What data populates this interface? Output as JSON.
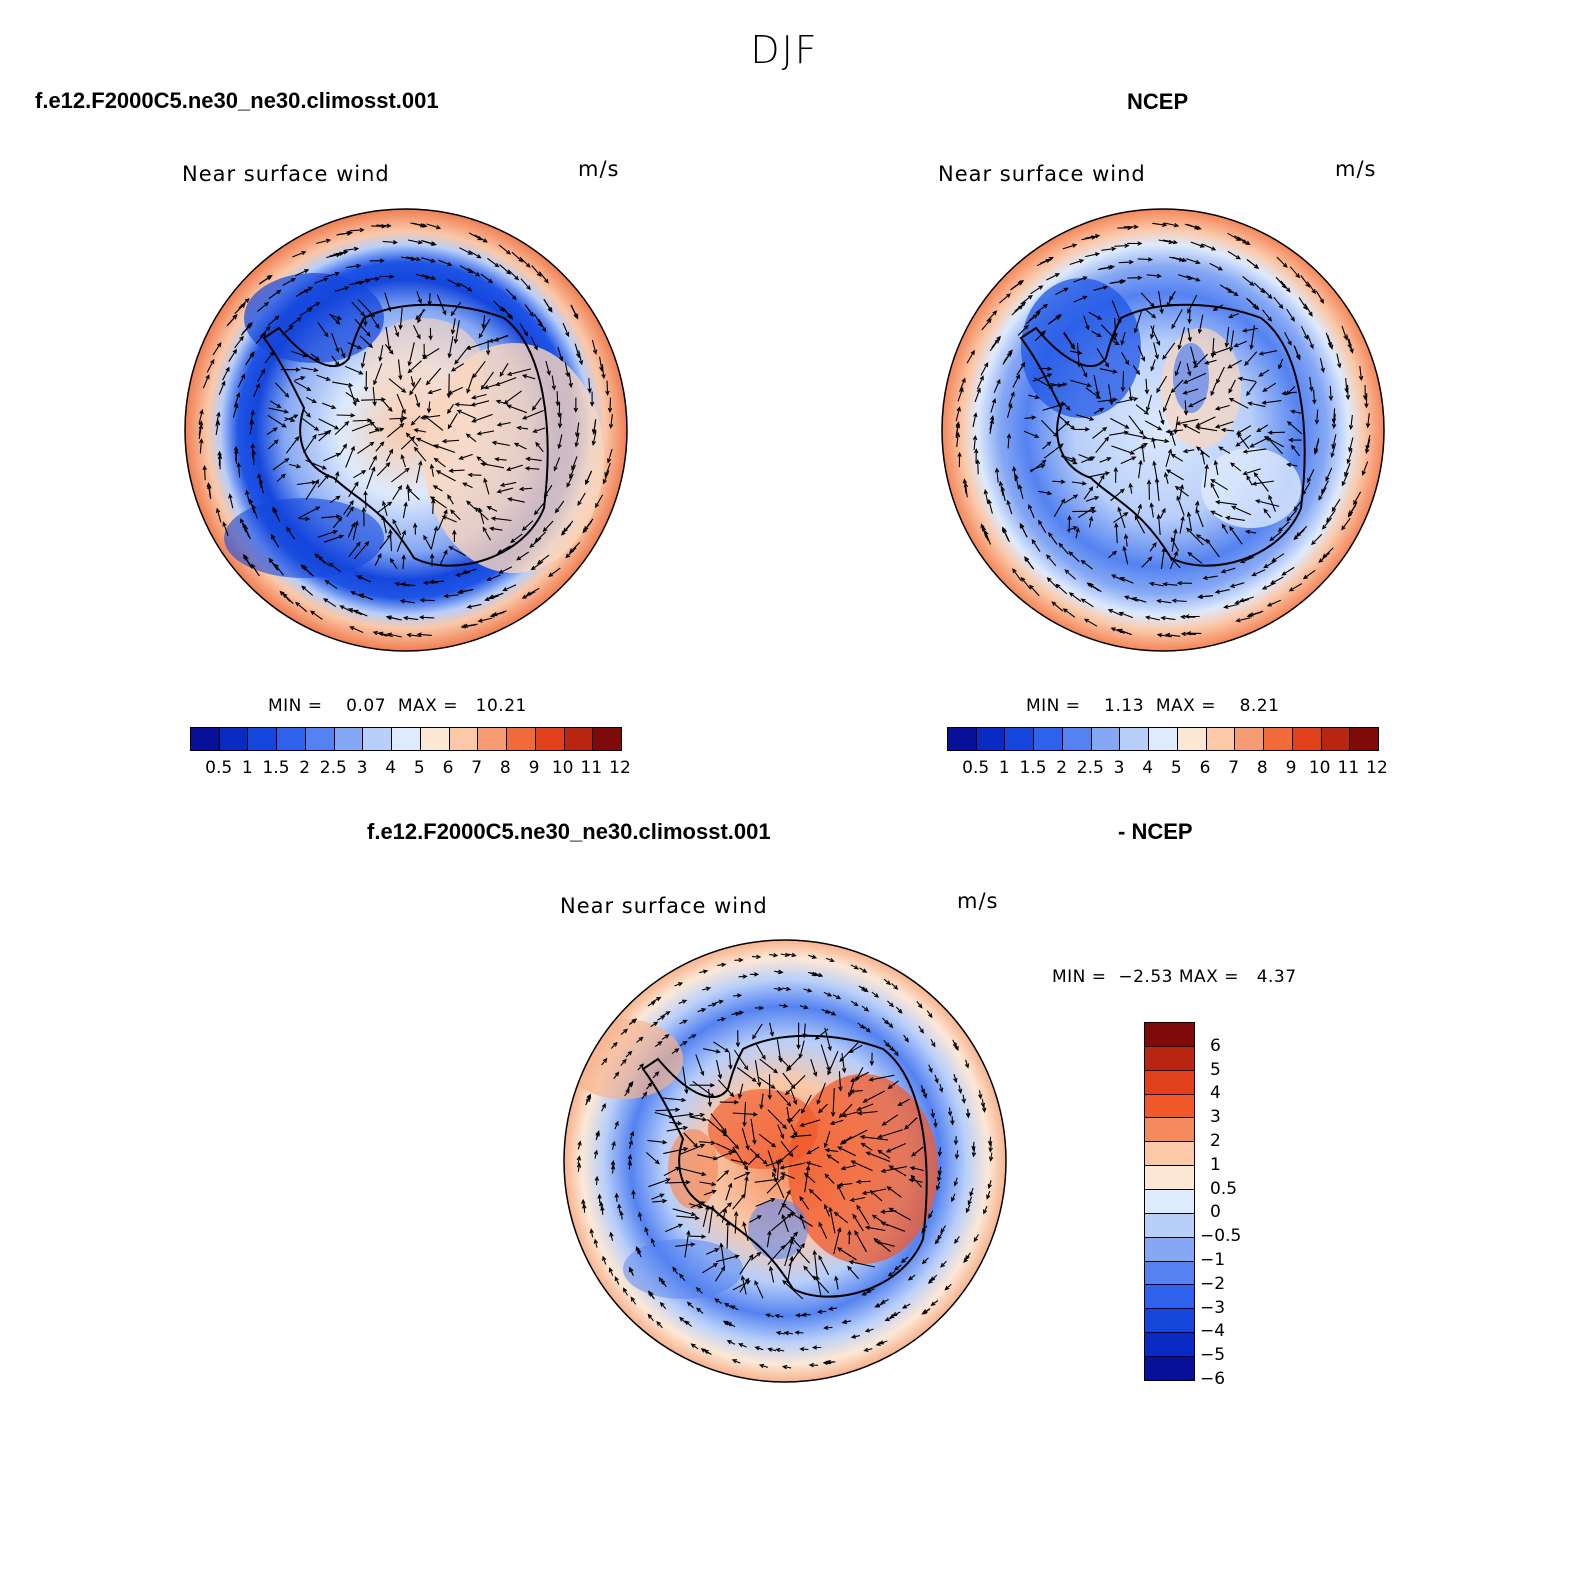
{
  "season": "DJF",
  "panels": {
    "model": {
      "case_name": "f.e12.F2000C5.ne30_ne30.climosst.001",
      "title": "Near surface wind",
      "units": "m/s",
      "min_label": "MIN =",
      "min": "0.07",
      "max_label": "MAX =",
      "max": "10.21",
      "colorbar_labels": [
        "0.5",
        "1",
        "1.5",
        "2",
        "2.5",
        "3",
        "4",
        "5",
        "6",
        "7",
        "8",
        "9",
        "10",
        "11",
        "12"
      ]
    },
    "obs": {
      "case_name": "NCEP",
      "title": "Near surface wind",
      "units": "m/s",
      "min_label": "MIN =",
      "min": "1.13",
      "max_label": "MAX =",
      "max": "8.21",
      "colorbar_labels": [
        "0.5",
        "1",
        "1.5",
        "2",
        "2.5",
        "3",
        "4",
        "5",
        "6",
        "7",
        "8",
        "9",
        "10",
        "11",
        "12"
      ]
    },
    "diff": {
      "case_name": "f.e12.F2000C5.ne30_ne30.climosst.001",
      "case_name_2": "- NCEP",
      "title": "Near surface wind",
      "units": "m/s",
      "min_label": "MIN =",
      "min": "−2.53",
      "max_label": "MAX =",
      "max": "4.37",
      "colorbar_labels": [
        "6",
        "5",
        "4",
        "3",
        "2",
        "1",
        "0.5",
        "0",
        "−0.5",
        "−1",
        "−2",
        "−3",
        "−4",
        "−5",
        "−6"
      ]
    }
  },
  "colors": {
    "scale": [
      "#08109a",
      "#0a2bc3",
      "#1446dc",
      "#2e62ec",
      "#5482f0",
      "#86a8f4",
      "#b8cffa",
      "#deeafd",
      "#fde8d6",
      "#fbc8a8",
      "#f79c72",
      "#f06a3a",
      "#e0401a",
      "#b82510",
      "#7e0a0a"
    ],
    "diff_scale": [
      "#7e0a0a",
      "#b82510",
      "#e0401a",
      "#f0582a",
      "#f58b5c",
      "#fbc8a8",
      "#fde8d6",
      "#deeafd",
      "#b8cffa",
      "#86a8f4",
      "#5482f0",
      "#2e62ec",
      "#1446dc",
      "#0a2bc3",
      "#08109a"
    ]
  }
}
